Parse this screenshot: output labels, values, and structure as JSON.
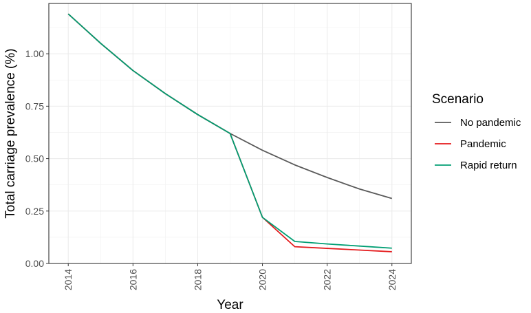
{
  "chart_data": {
    "type": "line",
    "title": "",
    "xlabel": "Year",
    "ylabel": "Total carriage prevalence (%)",
    "xlim": [
      2013.4,
      2024.6
    ],
    "ylim": [
      0,
      1.24
    ],
    "x_ticks": [
      2014,
      2016,
      2018,
      2020,
      2022,
      2024
    ],
    "y_ticks": [
      0.0,
      0.25,
      0.5,
      0.75,
      1.0
    ],
    "y_tick_labels": [
      "0.00",
      "0.25",
      "0.50",
      "0.75",
      "1.00"
    ],
    "grid": true,
    "legend": {
      "title": "Scenario",
      "placement": "right"
    },
    "series": [
      {
        "name": "No pandemic",
        "color": "#595959",
        "x": [
          2014,
          2015,
          2016,
          2017,
          2018,
          2019,
          2020,
          2021,
          2022,
          2023,
          2024
        ],
        "values": [
          1.19,
          1.05,
          0.92,
          0.81,
          0.71,
          0.62,
          0.54,
          0.47,
          0.41,
          0.355,
          0.31
        ]
      },
      {
        "name": "Pandemic",
        "color": "#e41a1c",
        "x": [
          2014,
          2015,
          2016,
          2017,
          2018,
          2019,
          2020,
          2021,
          2022,
          2023,
          2024
        ],
        "values": [
          1.19,
          1.05,
          0.92,
          0.81,
          0.71,
          0.62,
          0.22,
          0.08,
          0.072,
          0.064,
          0.056
        ]
      },
      {
        "name": "Rapid return",
        "color": "#009e73",
        "x": [
          2014,
          2015,
          2016,
          2017,
          2018,
          2019,
          2020,
          2021,
          2022,
          2023,
          2024
        ],
        "values": [
          1.19,
          1.05,
          0.92,
          0.81,
          0.71,
          0.62,
          0.22,
          0.105,
          0.093,
          0.083,
          0.073
        ]
      }
    ]
  }
}
